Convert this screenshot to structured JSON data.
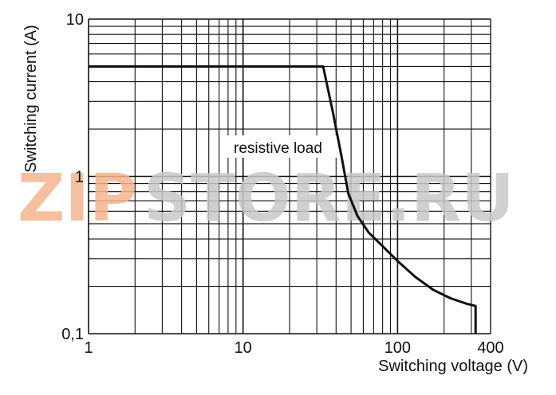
{
  "chart_data": {
    "type": "line",
    "title": "",
    "xlabel": "Switching voltage (V)",
    "ylabel": "Switching current (A)",
    "x_scale": "log",
    "y_scale": "log",
    "xlim": [
      1,
      400
    ],
    "ylim": [
      0.1,
      10
    ],
    "x_ticks": [
      {
        "value": 1,
        "label": "1"
      },
      {
        "value": 10,
        "label": "10"
      },
      {
        "value": 100,
        "label": "100"
      },
      {
        "value": 400,
        "label": "400"
      }
    ],
    "y_ticks": [
      {
        "value": 0.1,
        "label": "0,1"
      },
      {
        "value": 1,
        "label": "1"
      },
      {
        "value": 10,
        "label": "10"
      }
    ],
    "grid": true,
    "annotation": "resistive load",
    "series": [
      {
        "x": [
          1,
          33,
          38,
          43,
          48,
          55,
          65,
          80,
          100,
          130,
          170,
          220,
          280,
          320,
          320
        ],
        "y": [
          5,
          5,
          2.6,
          1.4,
          0.78,
          0.56,
          0.44,
          0.36,
          0.29,
          0.23,
          0.19,
          0.168,
          0.155,
          0.15,
          0.1
        ]
      }
    ],
    "colors": {
      "line": "#111111",
      "grid": "#111111"
    }
  },
  "watermark": {
    "text_left": "ZIP",
    "text_right": "STORE.RU",
    "color_left": "#f5b58c",
    "color_right": "#c8c8c8"
  }
}
